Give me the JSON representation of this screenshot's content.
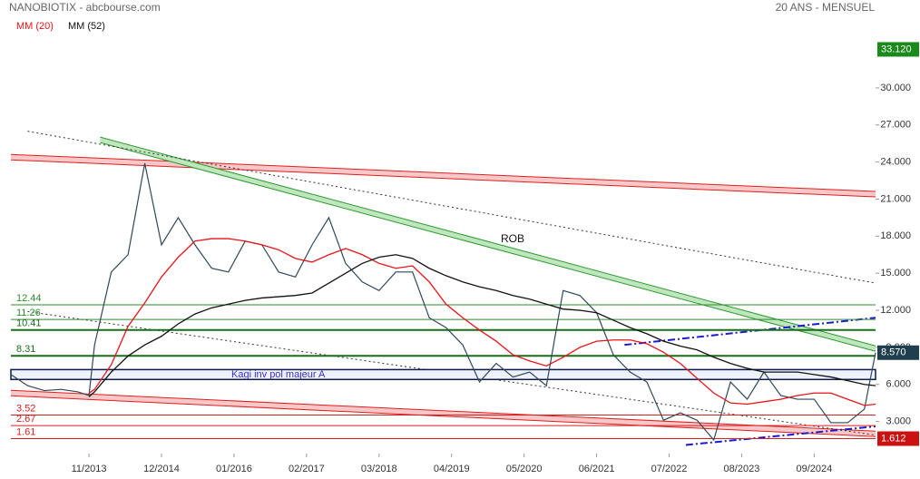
{
  "chart_data": {
    "type": "line",
    "title": "NANOBIOTIX - abcbourse.com",
    "subtitle": "20 ANS - MENSUEL",
    "annotation": "ROB",
    "x": [
      "09/2012",
      "12/2012",
      "03/2013",
      "06/2013",
      "09/2013",
      "11/2013",
      "12/2013",
      "03/2014",
      "06/2014",
      "09/2014",
      "12/2014",
      "03/2015",
      "06/2015",
      "09/2015",
      "12/2015",
      "03/2016",
      "06/2016",
      "09/2016",
      "12/2016",
      "03/2017",
      "06/2017",
      "09/2017",
      "12/2017",
      "03/2018",
      "06/2018",
      "09/2018",
      "12/2018",
      "03/2019",
      "06/2019",
      "09/2019",
      "12/2019",
      "03/2020",
      "06/2020",
      "09/2020",
      "12/2020",
      "03/2021",
      "06/2021",
      "09/2021",
      "12/2021",
      "03/2022",
      "06/2022",
      "09/2022",
      "12/2022",
      "03/2023",
      "06/2023",
      "09/2023",
      "12/2023",
      "03/2024",
      "06/2024",
      "09/2024",
      "12/2024",
      "03/2025",
      "06/2025",
      "08/2025"
    ],
    "series": [
      {
        "color": "#2f4858",
        "values": [
          6.8,
          5.9,
          5.5,
          5.6,
          5.4,
          5.1,
          9.2,
          15.1,
          16.5,
          23.9,
          17.3,
          19.5,
          17.3,
          15.4,
          15.1,
          17.6,
          17.3,
          15.1,
          14.7,
          17.3,
          19.5,
          15.8,
          14.3,
          13.6,
          15.1,
          15.1,
          11.4,
          10.6,
          9.2,
          6.2,
          7.7,
          6.6,
          7.0,
          5.9,
          13.6,
          13.2,
          11.8,
          8.4,
          7.0,
          6.2,
          3.1,
          3.7,
          3.1,
          1.5,
          6.2,
          4.8,
          7.0,
          5.1,
          4.8,
          4.8,
          2.9,
          2.9,
          4.0,
          8.57
        ]
      },
      {
        "name": "MM (20)",
        "color": "#e8141a",
        "values": [
          null,
          null,
          null,
          null,
          null,
          5.3,
          5.6,
          7.6,
          10.7,
          12.6,
          14.7,
          16.3,
          17.6,
          17.8,
          17.8,
          17.6,
          17.3,
          16.9,
          16.2,
          15.9,
          16.5,
          17.0,
          16.5,
          15.8,
          15.4,
          15.6,
          14.3,
          12.5,
          11.4,
          10.4,
          9.5,
          8.4,
          7.9,
          7.5,
          8.2,
          9.0,
          9.5,
          9.6,
          9.6,
          9.3,
          8.6,
          7.7,
          6.5,
          5.3,
          4.5,
          4.4,
          4.6,
          4.8,
          5.1,
          5.3,
          5.3,
          4.8,
          4.3,
          4.4
        ]
      },
      {
        "name": "MM (52)",
        "color": "#111111",
        "values": [
          null,
          null,
          null,
          null,
          null,
          5.0,
          5.4,
          7.0,
          8.3,
          9.2,
          9.9,
          10.9,
          11.7,
          12.2,
          12.5,
          12.8,
          13.0,
          13.1,
          13.2,
          13.4,
          14.2,
          15.0,
          15.8,
          16.3,
          16.5,
          16.2,
          15.4,
          14.8,
          14.3,
          13.9,
          13.6,
          13.2,
          12.9,
          12.5,
          12.1,
          12.0,
          11.8,
          11.2,
          10.6,
          10.1,
          9.5,
          9.1,
          8.8,
          8.2,
          7.7,
          7.3,
          7.0,
          7.0,
          7.0,
          6.8,
          6.6,
          6.3,
          6.0,
          5.9
        ]
      }
    ],
    "xlim": [
      "09/2012",
      "08/2025"
    ],
    "xticks": [
      "11/2013",
      "12/2014",
      "01/2016",
      "02/2017",
      "03/2018",
      "04/2019",
      "05/2020",
      "06/2021",
      "07/2022",
      "08/2023",
      "09/2024"
    ],
    "ylim": [
      0.4,
      33.3
    ],
    "yticks": [
      {
        "value": 3,
        "label": "3.000"
      },
      {
        "value": 6,
        "label": "6.000"
      },
      {
        "value": 9,
        "label": "9.000"
      },
      {
        "value": 12,
        "label": "12.000"
      },
      {
        "value": 15,
        "label": "15.000"
      },
      {
        "value": 18,
        "label": "18.000"
      },
      {
        "value": 21,
        "label": "21.000"
      },
      {
        "value": 24,
        "label": "24.000"
      },
      {
        "value": 27,
        "label": "27.000"
      },
      {
        "value": 30,
        "label": "30.000"
      }
    ],
    "levels": [
      {
        "value": 12.44,
        "color": "#2e8b2e",
        "width": 1
      },
      {
        "value": 11.26,
        "color": "#2e8b2e",
        "width": 1
      },
      {
        "value": 10.41,
        "color": "#1a6e1a",
        "width": 2
      },
      {
        "value": 8.31,
        "color": "#1a6e1a",
        "width": 2
      },
      {
        "value": 3.52,
        "color": "#d42020",
        "width": 1
      },
      {
        "value": 2.67,
        "color": "#d42020",
        "width": 1
      },
      {
        "value": 1.61,
        "color": "#d42020",
        "width": 1
      }
    ],
    "band": {
      "label": "Kagi inv pol majeur A",
      "from": 6.4,
      "to": 7.2
    },
    "trendlines": [
      {
        "style": "channel",
        "color": "#e02020",
        "fill": "#f8c8c8",
        "from": [
          "09/2012",
          24.4
        ],
        "to": [
          "08/2025",
          21.4
        ]
      },
      {
        "style": "channel",
        "color": "#e02020",
        "fill": "#f8c8c8",
        "from": [
          "09/2012",
          5.3
        ],
        "to": [
          "08/2025",
          2.0
        ]
      },
      {
        "style": "channel",
        "color": "#2e9a2e",
        "fill": "#bfe6bf",
        "from": [
          "01/2014",
          25.8
        ],
        "to": [
          "08/2025",
          8.9
        ]
      },
      {
        "style": "dotted",
        "color": "#333333",
        "from": [
          "12/2012",
          26.5
        ],
        "to": [
          "08/2025",
          14.2
        ]
      },
      {
        "style": "dotted",
        "color": "#333333",
        "from": [
          "12/2012",
          11.9
        ],
        "to": [
          "08/2025",
          1.9
        ]
      },
      {
        "style": "dashdot",
        "color": "#1a1ad0",
        "from": [
          "11/2021",
          9.2
        ],
        "to": [
          "08/2025",
          11.4
        ]
      },
      {
        "style": "dashdot",
        "color": "#1a1ad0",
        "from": [
          "10/2022",
          1.1
        ],
        "to": [
          "08/2025",
          2.6
        ]
      }
    ],
    "markers": [
      {
        "value": 33.12,
        "label": "33.120",
        "color": "#1a8a1a"
      },
      {
        "value": 8.57,
        "label": "8.570",
        "color": "#1f3f4f"
      },
      {
        "value": 1.612,
        "label": "1.612",
        "color": "#cc1111"
      }
    ]
  }
}
